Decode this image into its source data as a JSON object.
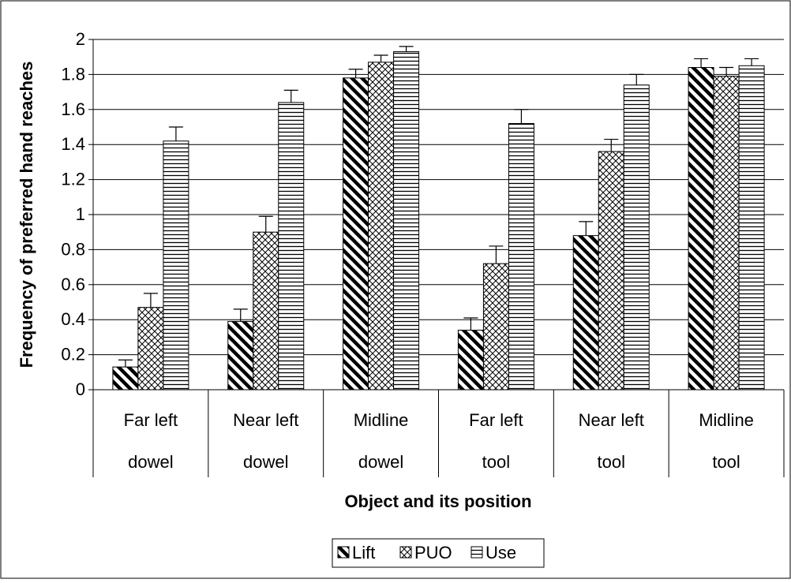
{
  "chart_data": {
    "type": "bar",
    "title": "",
    "xlabel": "Object and its position",
    "ylabel": "Frequency of preferred hand reaches",
    "ylim": [
      0,
      2
    ],
    "yticks": [
      "0",
      "0.2",
      "0.4",
      "0.6",
      "0.8",
      "1",
      "1.2",
      "1.4",
      "1.6",
      "1.8",
      "2"
    ],
    "grid": true,
    "legend_position": "bottom",
    "categories": [
      {
        "line1": "Far left",
        "line2": "dowel"
      },
      {
        "line1": "Near left",
        "line2": "dowel"
      },
      {
        "line1": "Midline",
        "line2": "dowel"
      },
      {
        "line1": "Far left",
        "line2": "tool"
      },
      {
        "line1": "Near left",
        "line2": "tool"
      },
      {
        "line1": "Midline",
        "line2": "tool"
      }
    ],
    "series": [
      {
        "name": "Lift",
        "pattern": "diagonal-stripes",
        "values": [
          0.13,
          0.39,
          1.78,
          0.34,
          0.88,
          1.84
        ],
        "errors": [
          0.04,
          0.07,
          0.05,
          0.07,
          0.08,
          0.05
        ]
      },
      {
        "name": "PUO",
        "pattern": "crosshatch",
        "values": [
          0.47,
          0.9,
          1.87,
          0.72,
          1.36,
          1.79
        ],
        "errors": [
          0.08,
          0.09,
          0.04,
          0.1,
          0.07,
          0.05
        ]
      },
      {
        "name": "Use",
        "pattern": "horizontal-lines",
        "values": [
          1.42,
          1.64,
          1.93,
          1.52,
          1.74,
          1.85
        ],
        "errors": [
          0.08,
          0.07,
          0.03,
          0.08,
          0.06,
          0.04
        ]
      }
    ]
  }
}
